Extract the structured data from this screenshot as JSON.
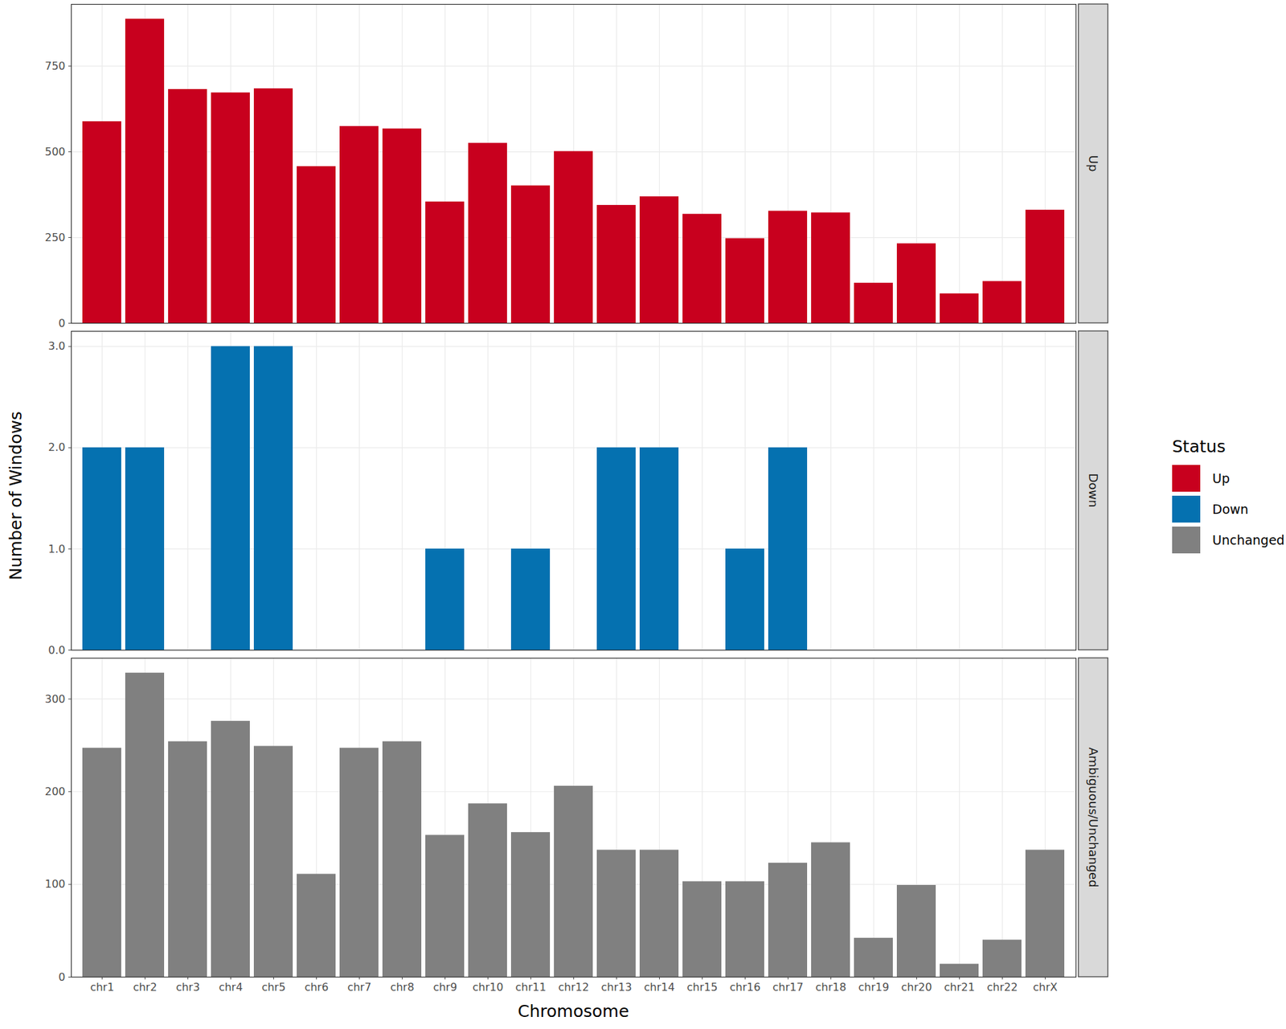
{
  "chart_data": {
    "type": "bar",
    "xlabel": "Chromosome",
    "ylabel": "Number of Windows",
    "legend_title": "Status",
    "legend": "right",
    "grid": true,
    "categories": [
      "chr1",
      "chr2",
      "chr3",
      "chr4",
      "chr5",
      "chr6",
      "chr7",
      "chr8",
      "chr9",
      "chr10",
      "chr11",
      "chr12",
      "chr13",
      "chr14",
      "chr15",
      "chr16",
      "chr17",
      "chr18",
      "chr19",
      "chr20",
      "chr21",
      "chr22",
      "chrX"
    ],
    "panels": [
      {
        "title": "Up",
        "ylim": [
          0,
          930
        ],
        "yticks": [
          0,
          250,
          500,
          750
        ],
        "series": [
          {
            "name": "Up",
            "color": "#C8001E",
            "values": [
              588,
              887,
              682,
              672,
              684,
              457,
              574,
              567,
              354,
              525,
              401,
              501,
              344,
              369,
              318,
              247,
              327,
              322,
              117,
              232,
              86,
              122,
              330
            ]
          }
        ]
      },
      {
        "title": "Down",
        "ylim": [
          0,
          3.15
        ],
        "yticks": [
          0,
          1,
          2,
          3
        ],
        "series": [
          {
            "name": "Down",
            "color": "#0571B0",
            "values": [
              2,
              2,
              0,
              3,
              3,
              0,
              0,
              0,
              1,
              0,
              1,
              0,
              2,
              2,
              0,
              1,
              2,
              0,
              0,
              0,
              0,
              0,
              0
            ]
          }
        ]
      },
      {
        "title": "Ambiguous/Unchanged",
        "ylim": [
          0,
          344
        ],
        "yticks": [
          0,
          100,
          200,
          300
        ],
        "series": [
          {
            "name": "Unchanged",
            "color": "#808080",
            "values": [
              247,
              328,
              254,
              276,
              249,
              111,
              247,
              254,
              153,
              187,
              156,
              206,
              137,
              137,
              103,
              103,
              123,
              145,
              42,
              99,
              14,
              40,
              137
            ]
          }
        ]
      }
    ]
  }
}
